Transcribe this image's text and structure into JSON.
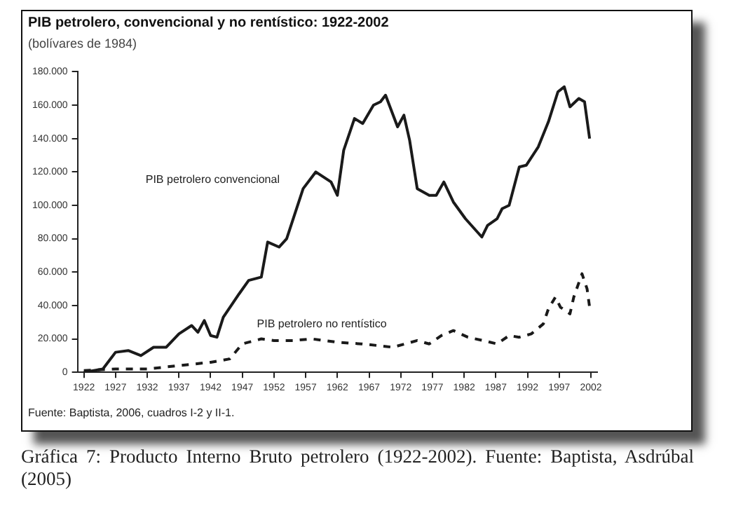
{
  "chart_data": {
    "type": "line",
    "title": "PIB petrolero, convencional y no rentístico: 1922-2002",
    "subtitle": "(bolívares de 1984)",
    "annotations": [
      "Fuente: Baptista, 2006, cuadros I-2 y II-1.",
      "Gráfica 7: Producto Interno Bruto petrolero (1922-2002). Fuente: Baptista, Asdrúbal (2005)"
    ],
    "xlim": [
      1921,
      2003
    ],
    "xticks": [
      1922,
      1927,
      1932,
      1937,
      1942,
      1947,
      1952,
      1957,
      1962,
      1967,
      1972,
      1977,
      1982,
      1987,
      1992,
      1997,
      2002
    ],
    "ylim": [
      0,
      180000
    ],
    "yticks": [
      {
        "value": 0,
        "label": "0"
      },
      {
        "value": 20000,
        "label": "20.000"
      },
      {
        "value": 40000,
        "label": "40.000"
      },
      {
        "value": 60000,
        "label": "60.000"
      },
      {
        "value": 80000,
        "label": "80.000"
      },
      {
        "value": 100000,
        "label": "100.000"
      },
      {
        "value": 120000,
        "label": "120.000"
      },
      {
        "value": 140000,
        "label": "140.000"
      },
      {
        "value": 160000,
        "label": "160.000"
      },
      {
        "value": 180000,
        "label": "180.000"
      }
    ],
    "grid": false,
    "legend": false,
    "marker": "none",
    "series": [
      {
        "name": "PIB petrolero convencional",
        "color": "#1a1a1a",
        "line_style": "solid",
        "x": [
          1922,
          1925,
          1927,
          1929,
          1931,
          1933,
          1935,
          1937,
          1939,
          1940,
          1941,
          1942,
          1943,
          1944,
          1946.5,
          1948,
          1950,
          1951,
          1952.8,
          1954,
          1956.6,
          1958.6,
          1961,
          1962,
          1963,
          1964.7,
          1966,
          1967.7,
          1968.8,
          1969.6,
          1971.5,
          1972.5,
          1973.4,
          1974.6,
          1976.5,
          1977.6,
          1978.8,
          1980.3,
          1982.2,
          1984.8,
          1985.7,
          1987.2,
          1988,
          1989.1,
          1990.7,
          1991.8,
          1993.7,
          1995.3,
          1996.8,
          1997.8,
          1998.7,
          2000.1,
          2001,
          2001.8
        ],
        "values": [
          0,
          2000,
          12000,
          13000,
          10000,
          15000,
          15000,
          23000,
          28000,
          24000,
          31000,
          22000,
          21000,
          33000,
          47000,
          55000,
          57000,
          78000,
          75000,
          80000,
          110000,
          120000,
          114000,
          106000,
          133000,
          152000,
          149000,
          160000,
          162000,
          166000,
          147000,
          154000,
          139000,
          110000,
          106000,
          106000,
          114000,
          102000,
          92000,
          81000,
          88000,
          92000,
          98000,
          100000,
          123000,
          124000,
          135000,
          150000,
          168000,
          171000,
          159000,
          164000,
          162000,
          140000
        ]
      },
      {
        "name": "PIB petrolero no rentístico",
        "color": "#1a1a1a",
        "line_style": "dashed",
        "x": [
          1922,
          1927,
          1932,
          1937,
          1942,
          1945,
          1947,
          1950,
          1952,
          1955,
          1958,
          1962,
          1965.8,
          1968.4,
          1970.7,
          1972.7,
          1974.6,
          1976.5,
          1978.4,
          1980.3,
          1982.6,
          1985,
          1987.2,
          1989.1,
          1990.7,
          1992.6,
          1994.5,
          1995.3,
          1996.4,
          1997.2,
          1998.7,
          1999.3,
          2000.6,
          2001.4,
          2001.8
        ],
        "values": [
          1000,
          2000,
          2000,
          4000,
          6000,
          8000,
          17000,
          20000,
          19000,
          19000,
          20000,
          18000,
          17000,
          16000,
          15000,
          17000,
          19000,
          17000,
          22000,
          25000,
          21000,
          19000,
          17000,
          22000,
          21000,
          23000,
          29000,
          38000,
          45000,
          39000,
          35000,
          45000,
          59000,
          50000,
          39000
        ]
      }
    ]
  }
}
